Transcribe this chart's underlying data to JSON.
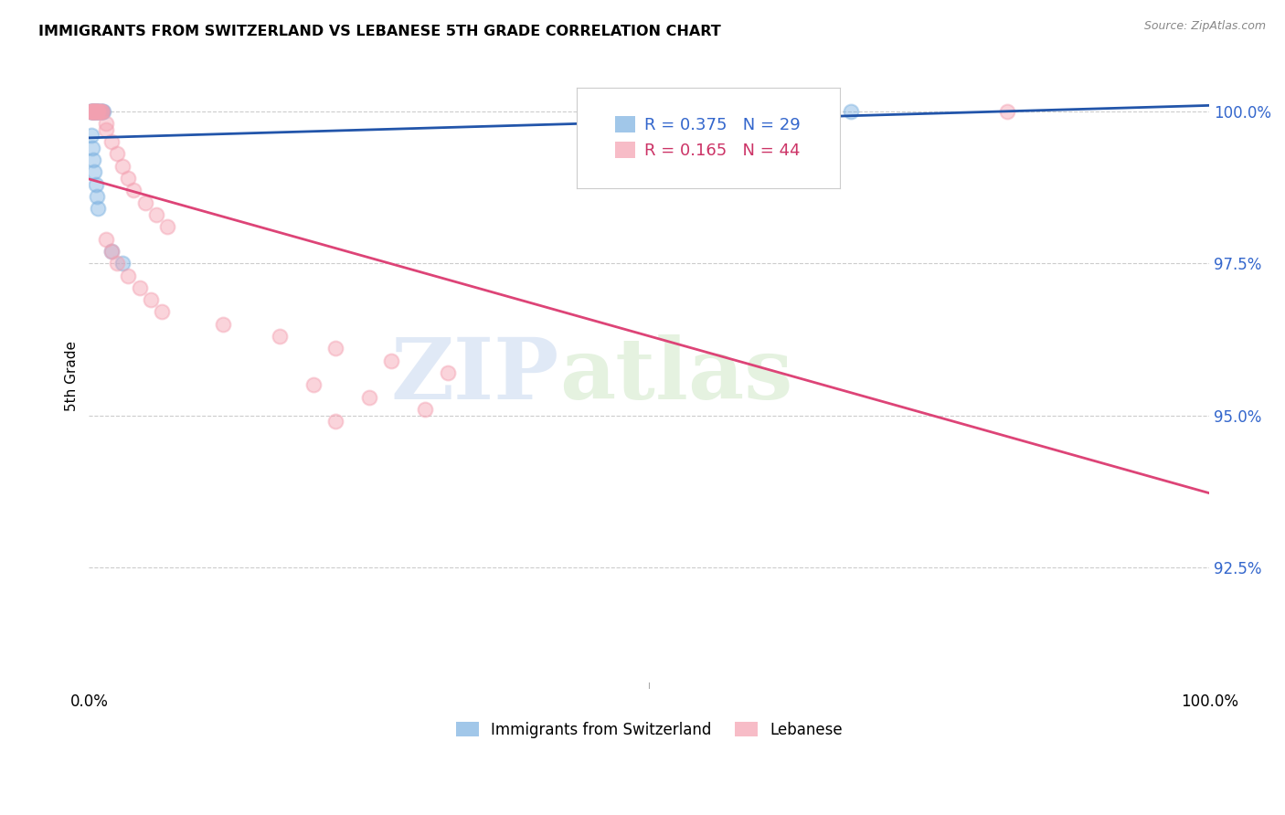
{
  "title": "IMMIGRANTS FROM SWITZERLAND VS LEBANESE 5TH GRADE CORRELATION CHART",
  "source": "Source: ZipAtlas.com",
  "ylabel": "5th Grade",
  "ytick_labels": [
    "100.0%",
    "97.5%",
    "95.0%",
    "92.5%"
  ],
  "ytick_values": [
    1.0,
    0.975,
    0.95,
    0.925
  ],
  "xlim": [
    0.0,
    1.0
  ],
  "ylim": [
    0.905,
    1.008
  ],
  "legend_swiss_r": "R = 0.375",
  "legend_swiss_n": "N = 29",
  "legend_leb_r": "R = 0.165",
  "legend_leb_n": "N = 44",
  "swiss_color": "#7ab0e0",
  "leb_color": "#f4a0b0",
  "swiss_line_color": "#2255aa",
  "leb_line_color": "#dd4477",
  "swiss_scatter_x": [
    0.001,
    0.002,
    0.003,
    0.003,
    0.004,
    0.004,
    0.005,
    0.005,
    0.006,
    0.006,
    0.007,
    0.008,
    0.008,
    0.009,
    0.01,
    0.011,
    0.012,
    0.013,
    0.002,
    0.003,
    0.004,
    0.005,
    0.006,
    0.007,
    0.008,
    0.02,
    0.03,
    0.55,
    0.68
  ],
  "swiss_scatter_y": [
    1.0,
    1.0,
    1.0,
    1.0,
    1.0,
    1.0,
    1.0,
    1.0,
    1.0,
    1.0,
    1.0,
    1.0,
    1.0,
    1.0,
    1.0,
    1.0,
    1.0,
    1.0,
    0.996,
    0.994,
    0.992,
    0.99,
    0.988,
    0.986,
    0.984,
    0.977,
    0.975,
    0.999,
    1.0
  ],
  "leb_scatter_x": [
    0.001,
    0.002,
    0.003,
    0.003,
    0.004,
    0.004,
    0.005,
    0.005,
    0.006,
    0.006,
    0.007,
    0.007,
    0.008,
    0.009,
    0.01,
    0.011,
    0.012,
    0.015,
    0.015,
    0.02,
    0.025,
    0.03,
    0.035,
    0.04,
    0.05,
    0.06,
    0.07,
    0.015,
    0.02,
    0.025,
    0.035,
    0.045,
    0.055,
    0.065,
    0.12,
    0.17,
    0.22,
    0.27,
    0.32,
    0.2,
    0.25,
    0.82,
    0.3,
    0.22
  ],
  "leb_scatter_y": [
    1.0,
    1.0,
    1.0,
    1.0,
    1.0,
    1.0,
    1.0,
    1.0,
    1.0,
    1.0,
    1.0,
    1.0,
    1.0,
    1.0,
    1.0,
    1.0,
    1.0,
    0.998,
    0.997,
    0.995,
    0.993,
    0.991,
    0.989,
    0.987,
    0.985,
    0.983,
    0.981,
    0.979,
    0.977,
    0.975,
    0.973,
    0.971,
    0.969,
    0.967,
    0.965,
    0.963,
    0.961,
    0.959,
    0.957,
    0.955,
    0.953,
    1.0,
    0.951,
    0.949
  ],
  "watermark_zip": "ZIP",
  "watermark_atlas": "atlas",
  "bottom_legend_swiss": "Immigrants from Switzerland",
  "bottom_legend_leb": "Lebanese"
}
